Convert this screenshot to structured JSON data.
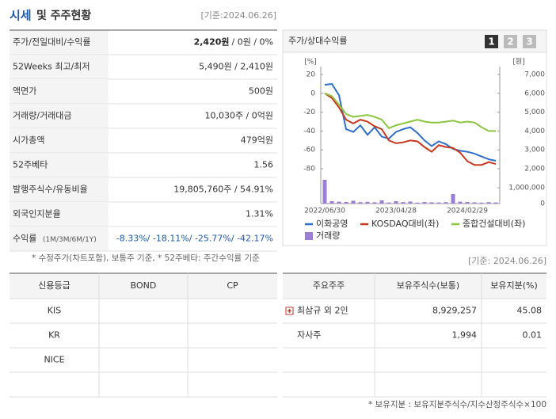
{
  "header": {
    "title_main": "시세",
    "title_rest": "및 주주현황",
    "date": "[기준:2024.06.26]"
  },
  "info_table": {
    "rows": [
      {
        "label": "주가/전일대비/수익률",
        "bold": "2,420원",
        "value": "/ 0원 / 0%"
      },
      {
        "label": "52Weeks 최고/최저",
        "value": "5,490원 / 2,410원"
      },
      {
        "label": "액면가",
        "value": "500원"
      },
      {
        "label": "거래량/거래대금",
        "value": "10,030주 / 0억원"
      },
      {
        "label": "시가총액",
        "value": "479억원"
      },
      {
        "label": "52주베타",
        "value": "1.56"
      },
      {
        "label": "발행주식수/유동비율",
        "value": "19,805,760주 / 54.91%"
      },
      {
        "label": "외국인지분율",
        "value": "1.31%"
      },
      {
        "label": "수익률",
        "sublabel": "(1M/3M/6M/1Y)",
        "value": "-8.33%/ -18.11%/ -25.77%/ -42.17%"
      }
    ],
    "note": "* 수정주가(차트포함), 보통주 기준, * 52주베타: 주간수익률 기준"
  },
  "chart_panel": {
    "title": "주가/상대수익률",
    "tabs": [
      "1",
      "2",
      "3"
    ]
  },
  "chart_data": {
    "type": "line",
    "y_unit": "[%]",
    "y2_unit": "[원]",
    "categories": [
      "2022/06/30",
      null,
      null,
      null,
      null,
      null,
      null,
      null,
      null,
      null,
      "2023/04/28",
      null,
      null,
      null,
      null,
      null,
      null,
      null,
      null,
      null,
      "2024/02/29",
      null,
      null,
      null,
      null
    ],
    "ylim": [
      -80,
      20
    ],
    "yticks": [
      20,
      0,
      -20,
      -40,
      -60,
      -80
    ],
    "y2lim": [
      2000,
      7000
    ],
    "y2ticks": [
      {
        "value": 7000,
        "label": "7,000"
      },
      {
        "value": 6000,
        "label": "6,000"
      },
      {
        "value": 5000,
        "label": "5,000"
      },
      {
        "value": 4000,
        "label": "4,000"
      },
      {
        "value": 3000,
        "label": "3,000"
      },
      {
        "value": 2000,
        "label": "2,000"
      }
    ],
    "series": [
      {
        "name": "이화공영",
        "color": "#2f6fc9",
        "axis": "y2",
        "values": [
          6450,
          6500,
          5900,
          4100,
          3950,
          4300,
          3800,
          4200,
          3700,
          3600,
          3950,
          4100,
          4200,
          3900,
          3500,
          3200,
          3450,
          3300,
          3050,
          2950,
          2900,
          2800,
          2650,
          2500,
          2420
        ]
      },
      {
        "name": "KOSDAQ대비(좌)",
        "color": "#c8381e",
        "values": [
          0,
          -5,
          -15,
          -28,
          -32,
          -28,
          -30,
          -35,
          -38,
          -50,
          -53,
          -52,
          -50,
          -51,
          -57,
          -62,
          -55,
          -57,
          -58,
          -63,
          -72,
          -76,
          -76,
          -73,
          -75
        ]
      },
      {
        "name": "종합건설대비(좌)",
        "color": "#8cc63f",
        "values": [
          0,
          -3,
          -12,
          -22,
          -25,
          -24,
          -23,
          -25,
          -28,
          -37,
          -34,
          -32,
          -30,
          -28,
          -30,
          -31,
          -31,
          -30,
          -29,
          -31,
          -30,
          -31,
          -36,
          -40,
          -40
        ]
      }
    ],
    "volume": {
      "name": "거래량",
      "color": "#9b7fd6",
      "ylim": [
        0,
        1000000
      ],
      "yticks": [
        {
          "value": 1000000,
          "label": "1,000,000"
        },
        0
      ],
      "values": [
        1500000,
        150000,
        120000,
        100000,
        180000,
        90000,
        110000,
        80000,
        200000,
        70000,
        150000,
        90000,
        130000,
        60000,
        100000,
        80000,
        70000,
        90000,
        600000,
        120000,
        100000,
        80000,
        60000,
        90000,
        70000
      ]
    }
  },
  "credit_table": {
    "header": [
      "신용등급",
      "BOND",
      "CP"
    ],
    "rows": [
      [
        "KIS"
      ],
      [
        "KR"
      ],
      [
        "NICE"
      ]
    ]
  },
  "holder_table": {
    "date": "[기준: 2024.06.26]",
    "header": [
      "주요주주",
      "보유주식수(보통)",
      "보유지분(%)"
    ],
    "rows": [
      [
        "최삼규 외 2인",
        "8,929,257",
        "45.08"
      ],
      [
        "자사주",
        "1,994",
        "0.01"
      ]
    ],
    "note": "* 보유지분 : 보유지분주식수/지수산정주식수×100"
  }
}
